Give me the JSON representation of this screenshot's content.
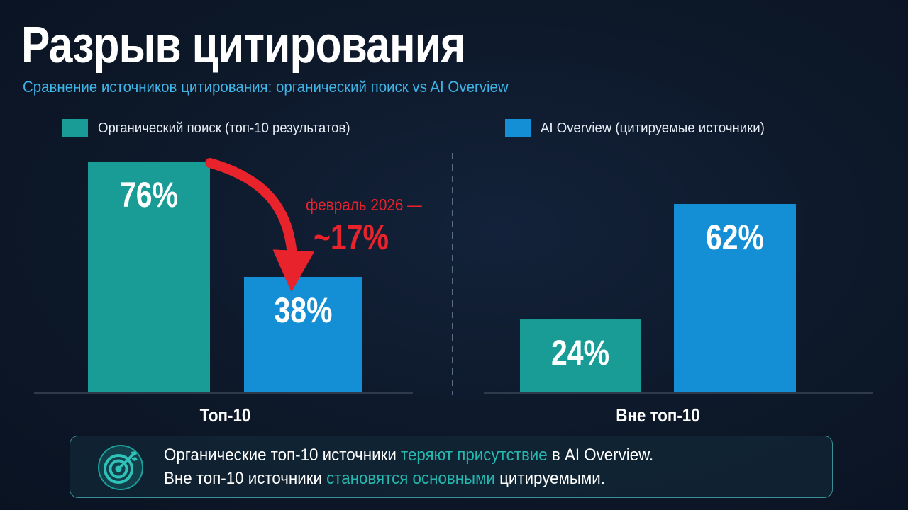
{
  "title": "Разрыв цитирования",
  "subtitle": "Сравнение источников цитирования: органический поиск vs AI Overview",
  "colors": {
    "organic": "#1a9c96",
    "ai_overview": "#148fd6",
    "annotation": "#e8232c",
    "highlight": "#26b7ae",
    "subtitle": "#3fb4e6"
  },
  "chart_data": {
    "type": "bar",
    "categories": [
      "Топ-10",
      "Вне топ-10"
    ],
    "series": [
      {
        "name": "Органический поиск (топ-10 результатов)",
        "values": [
          76,
          24
        ],
        "labels": [
          "76%",
          "24%"
        ]
      },
      {
        "name": "AI Overview (цитируемые источники)",
        "values": [
          38,
          62
        ],
        "labels": [
          "38%",
          "62%"
        ]
      }
    ],
    "unit": "%",
    "ylim": [
      0,
      76
    ],
    "grid": false,
    "legend": "top",
    "annotation": {
      "text_line1": "февраль 2026 —",
      "text_line2": "~17%",
      "arrow": "from Топ-10 organic bar to Топ-10 AI Overview bar"
    }
  },
  "callout": {
    "icon": "target-icon",
    "line1": {
      "before": "Органические топ-10 источники ",
      "highlight": "теряют присутствие",
      "after": " в AI Overview."
    },
    "line2": {
      "before": "Вне топ-10 источники ",
      "highlight": "становятся основными",
      "after": " цитируемыми."
    }
  }
}
